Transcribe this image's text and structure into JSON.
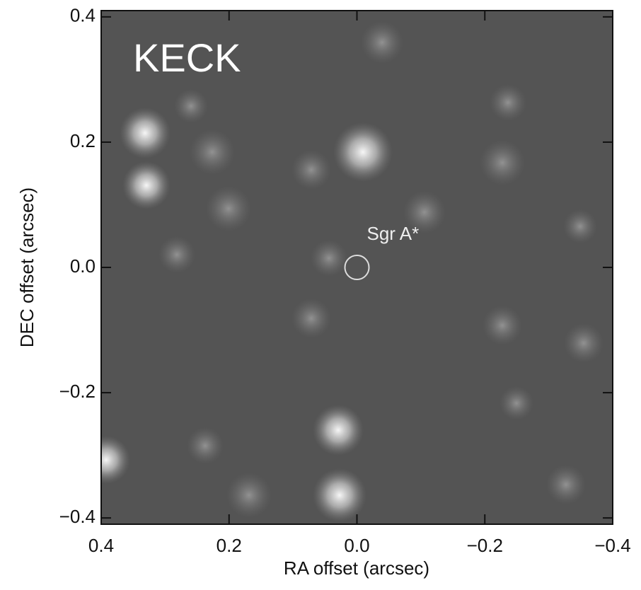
{
  "chart_data": {
    "type": "image",
    "title": "KECK",
    "x_label": "RA offset (arcsec)",
    "y_label": "DEC offset (arcsec)",
    "xlim": [
      0.4,
      -0.4
    ],
    "ylim": [
      -0.41,
      0.41
    ],
    "xticks": [
      0.4,
      0.2,
      {
        "value": 0,
        "label": "0.0"
      },
      {
        "value": -0.2,
        "label": "−0.2"
      },
      {
        "value": -0.4,
        "label": "−0.4"
      }
    ],
    "yticks": [
      {
        "value": -0.4,
        "label": "−0.4"
      },
      {
        "value": -0.2,
        "label": "−0.2"
      },
      {
        "value": 0,
        "label": "0.0"
      },
      0.2,
      0.4
    ],
    "marker": {
      "label": "Sgr A*",
      "x": 0,
      "y": 0
    }
  }
}
